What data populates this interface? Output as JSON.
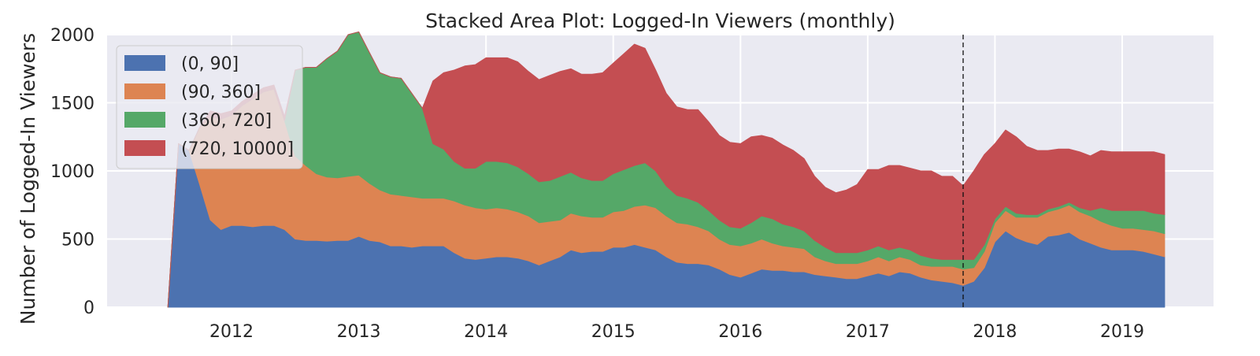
{
  "chart_data": {
    "type": "area",
    "stacked": true,
    "title": "Stacked Area Plot: Logged-In Viewers (monthly)",
    "xlabel": "",
    "ylabel": "Number of Logged-In Viewers",
    "ylim": [
      0,
      2000
    ],
    "yticks": [
      0,
      500,
      1000,
      1500,
      2000
    ],
    "xticks": [
      "2012",
      "2013",
      "2014",
      "2015",
      "2016",
      "2017",
      "2018",
      "2019"
    ],
    "grid": true,
    "legend_position": "upper-left",
    "vline_x": "2017-10",
    "x": [
      "2011-07",
      "2011-08",
      "2011-09",
      "2011-10",
      "2011-11",
      "2011-12",
      "2012-01",
      "2012-02",
      "2012-03",
      "2012-04",
      "2012-05",
      "2012-06",
      "2012-07",
      "2012-08",
      "2012-09",
      "2012-10",
      "2012-11",
      "2012-12",
      "2013-01",
      "2013-02",
      "2013-03",
      "2013-04",
      "2013-05",
      "2013-06",
      "2013-07",
      "2013-08",
      "2013-09",
      "2013-10",
      "2013-11",
      "2013-12",
      "2014-01",
      "2014-02",
      "2014-03",
      "2014-04",
      "2014-05",
      "2014-06",
      "2014-07",
      "2014-08",
      "2014-09",
      "2014-10",
      "2014-11",
      "2014-12",
      "2015-01",
      "2015-02",
      "2015-03",
      "2015-04",
      "2015-05",
      "2015-06",
      "2015-07",
      "2015-08",
      "2015-09",
      "2015-10",
      "2015-11",
      "2015-12",
      "2016-01",
      "2016-02",
      "2016-03",
      "2016-04",
      "2016-05",
      "2016-06",
      "2016-07",
      "2016-08",
      "2016-09",
      "2016-10",
      "2016-11",
      "2016-12",
      "2017-01",
      "2017-02",
      "2017-03",
      "2017-04",
      "2017-05",
      "2017-06",
      "2017-07",
      "2017-08",
      "2017-09",
      "2017-10",
      "2017-11",
      "2017-12",
      "2018-01",
      "2018-02",
      "2018-03",
      "2018-04",
      "2018-05",
      "2018-06",
      "2018-07",
      "2018-08",
      "2018-09",
      "2018-10",
      "2018-11",
      "2018-12",
      "2019-01",
      "2019-02",
      "2019-03",
      "2019-04",
      "2019-05"
    ],
    "series": [
      {
        "name": "(0, 90]",
        "color": "#4c72b0",
        "values": [
          0,
          1200,
          1150,
          900,
          640,
          570,
          600,
          600,
          590,
          600,
          600,
          570,
          500,
          490,
          490,
          485,
          490,
          490,
          520,
          490,
          480,
          450,
          450,
          440,
          450,
          450,
          450,
          400,
          360,
          350,
          360,
          370,
          370,
          360,
          340,
          310,
          340,
          370,
          420,
          400,
          410,
          410,
          440,
          440,
          460,
          440,
          420,
          370,
          330,
          320,
          320,
          310,
          280,
          240,
          220,
          250,
          280,
          270,
          270,
          260,
          260,
          240,
          230,
          220,
          210,
          210,
          230,
          250,
          230,
          260,
          250,
          220,
          200,
          190,
          180,
          160,
          190,
          290,
          480,
          560,
          510,
          480,
          460,
          520,
          530,
          550,
          500,
          470,
          440,
          420,
          420,
          420,
          410,
          390,
          370
        ]
      },
      {
        "name": "(90, 360]",
        "color": "#dd8452",
        "values": [
          0,
          0,
          0,
          420,
          760,
          810,
          810,
          880,
          940,
          980,
          1000,
          800,
          610,
          550,
          490,
          470,
          460,
          470,
          450,
          420,
          380,
          380,
          370,
          370,
          350,
          350,
          350,
          380,
          390,
          380,
          360,
          360,
          350,
          340,
          330,
          310,
          290,
          270,
          270,
          270,
          250,
          250,
          260,
          270,
          280,
          310,
          310,
          300,
          290,
          290,
          270,
          250,
          220,
          220,
          230,
          220,
          220,
          200,
          180,
          180,
          170,
          130,
          110,
          100,
          110,
          110,
          110,
          120,
          110,
          110,
          100,
          90,
          100,
          110,
          120,
          120,
          100,
          120,
          140,
          150,
          150,
          180,
          200,
          180,
          190,
          200,
          200,
          200,
          190,
          180,
          160,
          160,
          160,
          170,
          170
        ]
      },
      {
        "name": "(360, 720]",
        "color": "#55a868",
        "values": [
          0,
          0,
          0,
          0,
          0,
          0,
          0,
          0,
          0,
          0,
          0,
          0,
          630,
          720,
          780,
          870,
          930,
          1040,
          1050,
          960,
          860,
          860,
          860,
          760,
          660,
          400,
          360,
          290,
          270,
          290,
          350,
          340,
          340,
          330,
          310,
          300,
          300,
          320,
          300,
          280,
          270,
          270,
          280,
          300,
          300,
          310,
          270,
          220,
          200,
          190,
          180,
          150,
          140,
          130,
          130,
          150,
          170,
          180,
          160,
          150,
          130,
          120,
          100,
          80,
          80,
          80,
          80,
          80,
          80,
          70,
          70,
          70,
          60,
          50,
          50,
          70,
          60,
          50,
          30,
          30,
          30,
          20,
          20,
          20,
          20,
          20,
          30,
          40,
          100,
          110,
          130,
          130,
          140,
          130,
          140
        ]
      },
      {
        "name": "(720, 10000]",
        "color": "#c44e52",
        "values": [
          0,
          0,
          0,
          0,
          40,
          40,
          30,
          30,
          30,
          30,
          30,
          30,
          0,
          0,
          0,
          0,
          0,
          0,
          0,
          0,
          0,
          0,
          0,
          0,
          0,
          460,
          560,
          670,
          750,
          760,
          760,
          760,
          770,
          770,
          750,
          750,
          770,
          770,
          760,
          760,
          780,
          790,
          810,
          850,
          890,
          840,
          740,
          680,
          650,
          650,
          680,
          650,
          620,
          620,
          620,
          630,
          590,
          590,
          580,
          560,
          530,
          470,
          440,
          440,
          460,
          500,
          590,
          560,
          620,
          600,
          600,
          620,
          640,
          610,
          610,
          540,
          650,
          660,
          550,
          560,
          560,
          500,
          470,
          430,
          420,
          390,
          410,
          400,
          420,
          430,
          430,
          430,
          430,
          450,
          440
        ]
      }
    ]
  }
}
